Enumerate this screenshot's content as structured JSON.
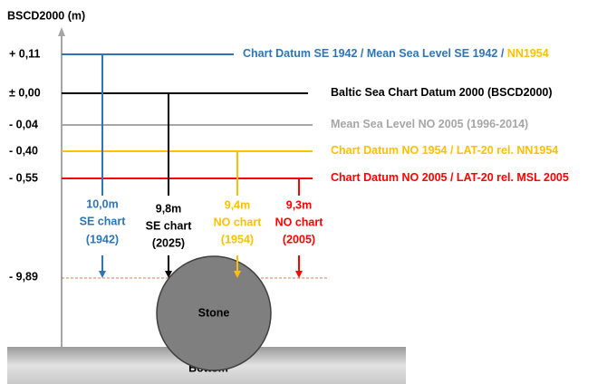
{
  "axis_title": "BSCD2000 (m)",
  "levels": [
    {
      "label": "+ 0,11",
      "name": [
        "Chart Datum SE 1942 / Mean Sea Level SE 1942 / ",
        "NN1954"
      ]
    },
    {
      "label": "± 0,00",
      "name": [
        "Baltic Sea Chart Datum 2000 (BSCD2000)"
      ]
    },
    {
      "label": "- 0,04",
      "name": [
        "Mean Sea Level NO 2005 (1996-2014)"
      ]
    },
    {
      "label": "- 0,40",
      "name": [
        "Chart Datum NO 1954 / LAT-20 rel. NN1954"
      ]
    },
    {
      "label": "- 0,55",
      "name": [
        "Chart Datum NO 2005 / LAT-20 rel. MSL 2005"
      ]
    }
  ],
  "charts": [
    {
      "depth": "10,0m",
      "lines": [
        "SE chart",
        "(1942)"
      ]
    },
    {
      "depth": "9,8m",
      "lines": [
        "SE chart",
        "(2025)"
      ]
    },
    {
      "depth": "9,4m",
      "lines": [
        "NO chart",
        "(1954)"
      ]
    },
    {
      "depth": "9,3m",
      "lines": [
        "NO chart",
        "(2005)"
      ]
    }
  ],
  "seabed_level": "- 9,89",
  "stone": "Stone",
  "bottom": "Bottom"
}
